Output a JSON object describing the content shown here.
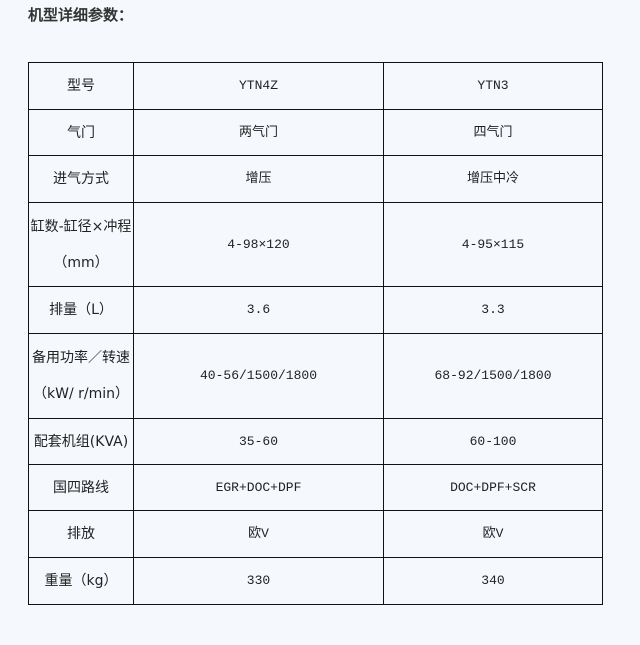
{
  "title": "机型详细参数：",
  "columns": [
    "型号",
    "YTN4Z",
    "YTN3"
  ],
  "rows": [
    {
      "label": "气门",
      "a": "两气门",
      "b": "四气门"
    },
    {
      "label": "进气方式",
      "a": "增压",
      "b": "增压中冷"
    },
    {
      "label": "缸数-缸径×冲程（mm）",
      "a": "4-98×120",
      "b": "4-95×115"
    },
    {
      "label": "排量（L）",
      "a": "3.6",
      "b": "3.3"
    },
    {
      "label": "备用功率／转速（kW/ r/min）",
      "a": "40-56/1500/1800",
      "b": "68-92/1500/1800"
    },
    {
      "label": "配套机组(KVA)",
      "a": "35-60",
      "b": "60-100"
    },
    {
      "label": "国四路线",
      "a": "EGR+DOC+DPF",
      "b": "DOC+DPF+SCR"
    },
    {
      "label": "排放",
      "a": "欧V",
      "b": "欧V"
    },
    {
      "label": "重量（kg）",
      "a": "330",
      "b": "340"
    }
  ]
}
